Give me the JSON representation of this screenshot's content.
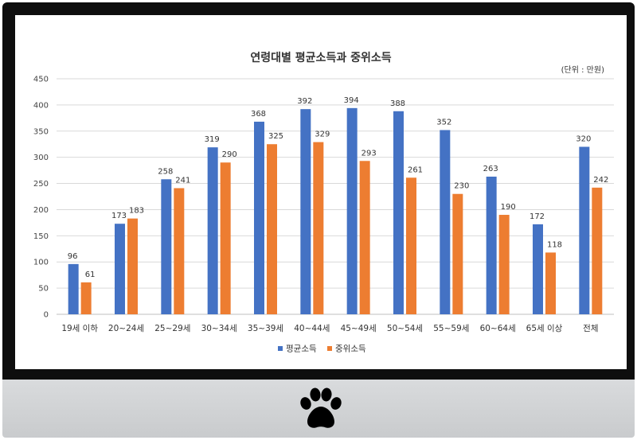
{
  "chart_data": {
    "type": "bar",
    "title": "연령대별 평균소득과 중위소득",
    "unit": "(단위 : 만원)",
    "categories": [
      "19세 이하",
      "20~24세",
      "25~29세",
      "30~34세",
      "35~39세",
      "40~44세",
      "45~49세",
      "50~54세",
      "55~59세",
      "60~64세",
      "65세 이상",
      "전체"
    ],
    "series": [
      {
        "name": "평균소득",
        "color": "#4472c4",
        "values": [
          96,
          173,
          258,
          319,
          368,
          392,
          394,
          388,
          352,
          263,
          172,
          320
        ]
      },
      {
        "name": "중위소득",
        "color": "#ed7d31",
        "values": [
          61,
          183,
          241,
          290,
          325,
          329,
          293,
          261,
          230,
          190,
          118,
          242
        ]
      }
    ],
    "ylim": [
      0,
      450
    ],
    "yticks": [
      0,
      50,
      100,
      150,
      200,
      250,
      300,
      350,
      400,
      450
    ],
    "grid": true,
    "legend_position": "bottom"
  },
  "chin": {
    "logo_icon": "paw-print-icon"
  }
}
